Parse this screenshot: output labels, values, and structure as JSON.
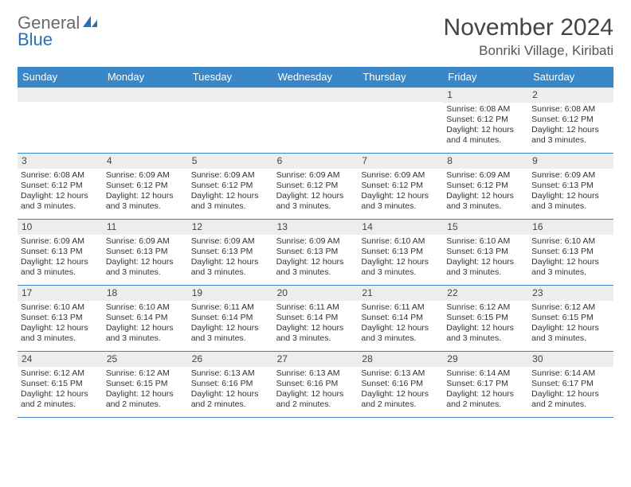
{
  "logo": {
    "line1": "General",
    "line2": "Blue",
    "gray_color": "#6a6a6a",
    "blue_color": "#2a6fb5"
  },
  "header": {
    "title": "November 2024",
    "location": "Bonriki Village, Kiribati"
  },
  "colors": {
    "header_bg": "#3a87c8",
    "header_text": "#ffffff",
    "row_border": "#3a87c8",
    "daynum_bg": "#eceded",
    "text": "#333333"
  },
  "weekdays": [
    "Sunday",
    "Monday",
    "Tuesday",
    "Wednesday",
    "Thursday",
    "Friday",
    "Saturday"
  ],
  "weeks": [
    [
      {
        "day": "",
        "lines": []
      },
      {
        "day": "",
        "lines": []
      },
      {
        "day": "",
        "lines": []
      },
      {
        "day": "",
        "lines": []
      },
      {
        "day": "",
        "lines": []
      },
      {
        "day": "1",
        "lines": [
          "Sunrise: 6:08 AM",
          "Sunset: 6:12 PM",
          "Daylight: 12 hours and 4 minutes."
        ]
      },
      {
        "day": "2",
        "lines": [
          "Sunrise: 6:08 AM",
          "Sunset: 6:12 PM",
          "Daylight: 12 hours and 3 minutes."
        ]
      }
    ],
    [
      {
        "day": "3",
        "lines": [
          "Sunrise: 6:08 AM",
          "Sunset: 6:12 PM",
          "Daylight: 12 hours and 3 minutes."
        ]
      },
      {
        "day": "4",
        "lines": [
          "Sunrise: 6:09 AM",
          "Sunset: 6:12 PM",
          "Daylight: 12 hours and 3 minutes."
        ]
      },
      {
        "day": "5",
        "lines": [
          "Sunrise: 6:09 AM",
          "Sunset: 6:12 PM",
          "Daylight: 12 hours and 3 minutes."
        ]
      },
      {
        "day": "6",
        "lines": [
          "Sunrise: 6:09 AM",
          "Sunset: 6:12 PM",
          "Daylight: 12 hours and 3 minutes."
        ]
      },
      {
        "day": "7",
        "lines": [
          "Sunrise: 6:09 AM",
          "Sunset: 6:12 PM",
          "Daylight: 12 hours and 3 minutes."
        ]
      },
      {
        "day": "8",
        "lines": [
          "Sunrise: 6:09 AM",
          "Sunset: 6:12 PM",
          "Daylight: 12 hours and 3 minutes."
        ]
      },
      {
        "day": "9",
        "lines": [
          "Sunrise: 6:09 AM",
          "Sunset: 6:13 PM",
          "Daylight: 12 hours and 3 minutes."
        ]
      }
    ],
    [
      {
        "day": "10",
        "lines": [
          "Sunrise: 6:09 AM",
          "Sunset: 6:13 PM",
          "Daylight: 12 hours and 3 minutes."
        ]
      },
      {
        "day": "11",
        "lines": [
          "Sunrise: 6:09 AM",
          "Sunset: 6:13 PM",
          "Daylight: 12 hours and 3 minutes."
        ]
      },
      {
        "day": "12",
        "lines": [
          "Sunrise: 6:09 AM",
          "Sunset: 6:13 PM",
          "Daylight: 12 hours and 3 minutes."
        ]
      },
      {
        "day": "13",
        "lines": [
          "Sunrise: 6:09 AM",
          "Sunset: 6:13 PM",
          "Daylight: 12 hours and 3 minutes."
        ]
      },
      {
        "day": "14",
        "lines": [
          "Sunrise: 6:10 AM",
          "Sunset: 6:13 PM",
          "Daylight: 12 hours and 3 minutes."
        ]
      },
      {
        "day": "15",
        "lines": [
          "Sunrise: 6:10 AM",
          "Sunset: 6:13 PM",
          "Daylight: 12 hours and 3 minutes."
        ]
      },
      {
        "day": "16",
        "lines": [
          "Sunrise: 6:10 AM",
          "Sunset: 6:13 PM",
          "Daylight: 12 hours and 3 minutes."
        ]
      }
    ],
    [
      {
        "day": "17",
        "lines": [
          "Sunrise: 6:10 AM",
          "Sunset: 6:13 PM",
          "Daylight: 12 hours and 3 minutes."
        ]
      },
      {
        "day": "18",
        "lines": [
          "Sunrise: 6:10 AM",
          "Sunset: 6:14 PM",
          "Daylight: 12 hours and 3 minutes."
        ]
      },
      {
        "day": "19",
        "lines": [
          "Sunrise: 6:11 AM",
          "Sunset: 6:14 PM",
          "Daylight: 12 hours and 3 minutes."
        ]
      },
      {
        "day": "20",
        "lines": [
          "Sunrise: 6:11 AM",
          "Sunset: 6:14 PM",
          "Daylight: 12 hours and 3 minutes."
        ]
      },
      {
        "day": "21",
        "lines": [
          "Sunrise: 6:11 AM",
          "Sunset: 6:14 PM",
          "Daylight: 12 hours and 3 minutes."
        ]
      },
      {
        "day": "22",
        "lines": [
          "Sunrise: 6:12 AM",
          "Sunset: 6:15 PM",
          "Daylight: 12 hours and 3 minutes."
        ]
      },
      {
        "day": "23",
        "lines": [
          "Sunrise: 6:12 AM",
          "Sunset: 6:15 PM",
          "Daylight: 12 hours and 3 minutes."
        ]
      }
    ],
    [
      {
        "day": "24",
        "lines": [
          "Sunrise: 6:12 AM",
          "Sunset: 6:15 PM",
          "Daylight: 12 hours and 2 minutes."
        ]
      },
      {
        "day": "25",
        "lines": [
          "Sunrise: 6:12 AM",
          "Sunset: 6:15 PM",
          "Daylight: 12 hours and 2 minutes."
        ]
      },
      {
        "day": "26",
        "lines": [
          "Sunrise: 6:13 AM",
          "Sunset: 6:16 PM",
          "Daylight: 12 hours and 2 minutes."
        ]
      },
      {
        "day": "27",
        "lines": [
          "Sunrise: 6:13 AM",
          "Sunset: 6:16 PM",
          "Daylight: 12 hours and 2 minutes."
        ]
      },
      {
        "day": "28",
        "lines": [
          "Sunrise: 6:13 AM",
          "Sunset: 6:16 PM",
          "Daylight: 12 hours and 2 minutes."
        ]
      },
      {
        "day": "29",
        "lines": [
          "Sunrise: 6:14 AM",
          "Sunset: 6:17 PM",
          "Daylight: 12 hours and 2 minutes."
        ]
      },
      {
        "day": "30",
        "lines": [
          "Sunrise: 6:14 AM",
          "Sunset: 6:17 PM",
          "Daylight: 12 hours and 2 minutes."
        ]
      }
    ]
  ]
}
